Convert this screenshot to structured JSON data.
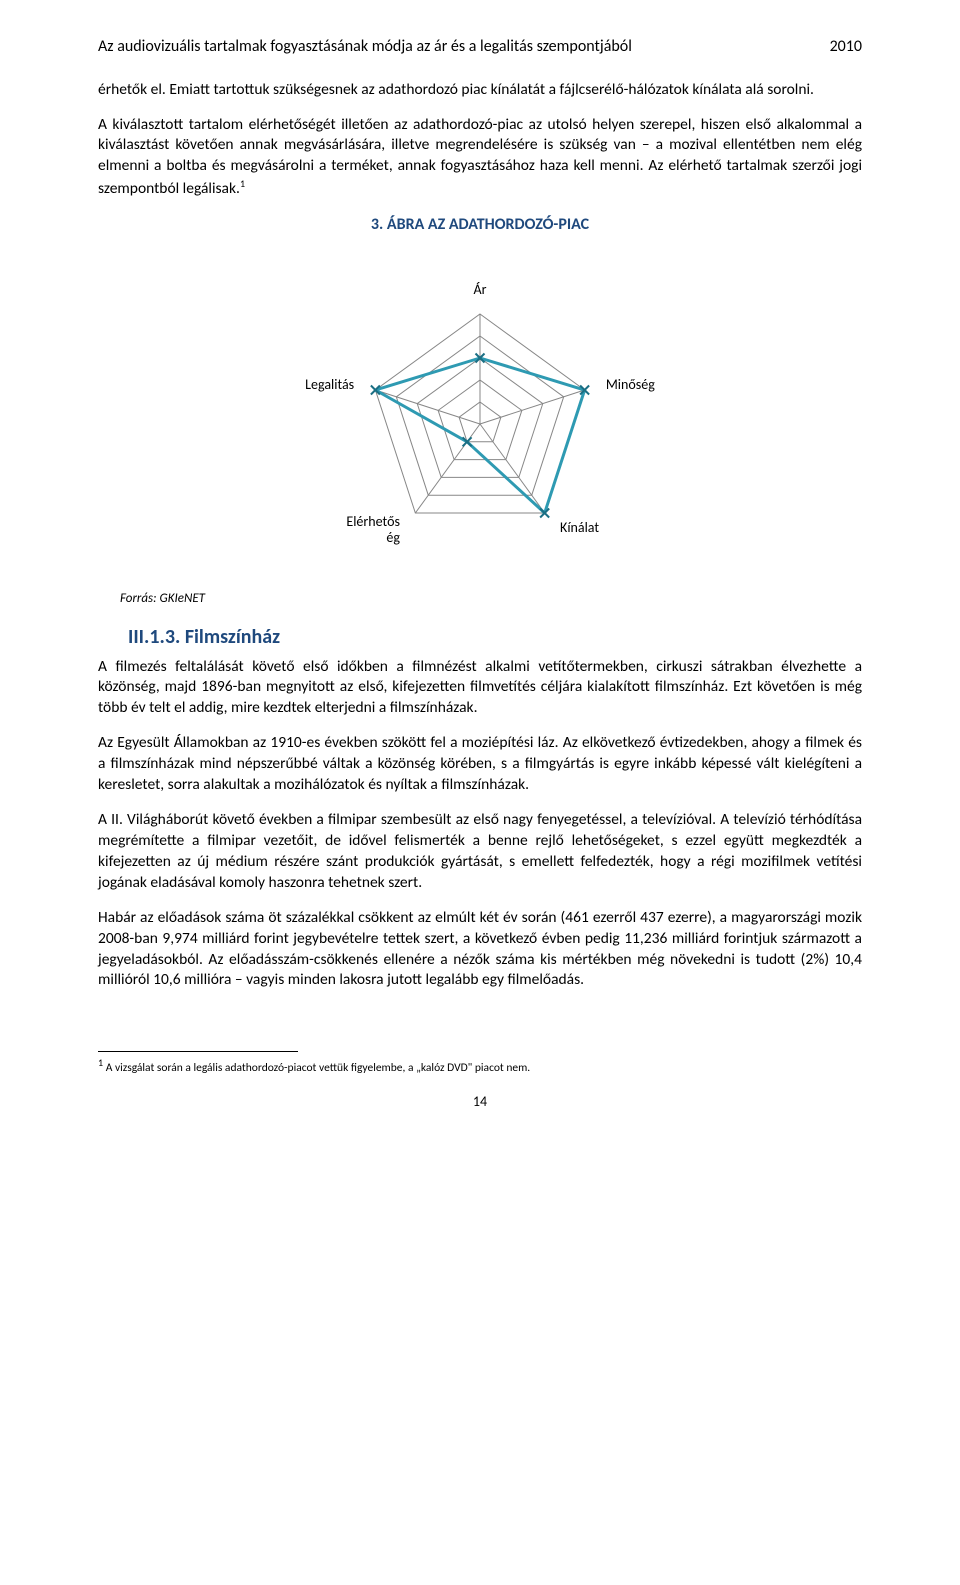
{
  "header": {
    "title": "Az audiovizuális tartalmak fogyasztásának módja az ár és a legalitás szempontjából",
    "year": "2010"
  },
  "para1": "érhetők el. Emiatt tartottuk szükségesnek az adathordozó piac kínálatát a fájlcserélő-hálózatok kínálata alá sorolni.",
  "para2": "A kiválasztott tartalom elérhetőségét illetően az adathordozó-piac az utolsó helyen szerepel, hiszen első alkalommal a kiválasztást követően annak megvásárlására, illetve megrendelésére is szükség van – a mozival ellentétben nem elég elmenni a boltba és megvásárolni a terméket, annak fogyasztásához haza kell menni. Az elérhető tartalmak szerzői jogi szempontból legálisak.",
  "fn_marker": "1",
  "figure": {
    "title": "3. ÁBRA AZ ADATHORDOZÓ-PIAC",
    "type": "radar",
    "axes": [
      "Ár",
      "Minőség",
      "Kínálat",
      "Elérhetős ég",
      "Legalitás"
    ],
    "axis_label_left1": "Elérhetős",
    "axis_label_left2": "ég",
    "values": [
      3,
      5,
      5,
      1,
      5
    ],
    "max": 5,
    "line_color": "#2e9ab2",
    "line_width": 3,
    "marker_fill": "#2e9ab2",
    "marker_stroke": "#1b6f84",
    "grid_color": "#878787",
    "grid_width": 1,
    "label_color": "#000000",
    "label_fontsize": 14,
    "background": "#ffffff"
  },
  "source": "Forrás: GKIeNET",
  "section": "III.1.3. Filmszínház",
  "para3": "A filmezés feltalálását követő első időkben a filmnézést alkalmi vetítőtermekben, cirkuszi sátrakban élvezhette a közönség, majd 1896-ban megnyitott az első, kifejezetten filmvetítés céljára kialakított filmszínház. Ezt követően is még több év telt el addig, mire kezdtek elterjedni a filmszínházak.",
  "para4": "Az Egyesült Államokban az 1910-es években szökött fel a moziépítési láz. Az elkövetkező évtizedekben, ahogy a filmek és a filmszínházak mind népszerűbbé váltak a közönség körében, s a filmgyártás is egyre inkább képessé vált kielégíteni a keresletet, sorra alakultak a mozihálózatok és nyíltak a filmszínházak.",
  "para5": "A II. Világháborút követő években a filmipar szembesült az első nagy fenyegetéssel, a televízióval. A televízió térhódítása megrémítette a filmipar vezetőit, de idővel felismerték a benne rejlő lehetőségeket, s ezzel együtt megkezdték a kifejezetten az új médium részére szánt produkciók gyártását, s emellett felfedezték, hogy a régi mozifilmek vetítési jogának eladásával komoly haszonra tehetnek szert.",
  "para6": "Habár az előadások száma öt százalékkal csökkent az elmúlt két év során (461 ezerről 437 ezerre), a magyarországi mozik 2008-ban 9,974 milliárd forint jegybevételre tettek szert, a következő évben pedig 11,236 milliárd forintjuk származott a jegyeladásokból. Az előadásszám-csökkenés ellenére a nézők száma kis mértékben még növekedni is tudott (2%) 10,4 millióról 10,6 millióra – vagyis minden lakosra jutott legalább egy filmelőadás.",
  "footnote": "A vizsgálat során a legális adathordozó-piacot vettük figyelembe, a „kalóz DVD\" piacot nem.",
  "footnote_marker": "1",
  "page": "14"
}
